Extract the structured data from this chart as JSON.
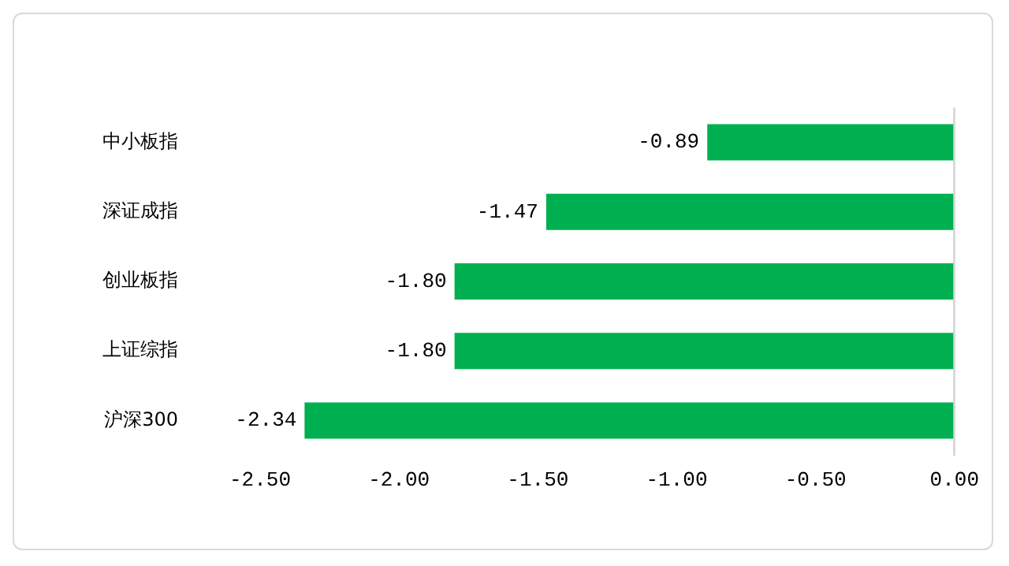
{
  "chart_data": {
    "type": "bar",
    "orientation": "horizontal",
    "categories": [
      "中小板指",
      "深证成指",
      "创业板指",
      "上证综指",
      "沪深300"
    ],
    "values": [
      -0.89,
      -1.47,
      -1.8,
      -1.8,
      -2.34
    ],
    "color": "#00b050",
    "value_labels": [
      "-0.89",
      "-1.47",
      "-1.80",
      "-1.80",
      "-2.34"
    ],
    "xlim": [
      -2.5,
      0
    ],
    "xticks": [
      {
        "value": -2.5,
        "label": "-2.50"
      },
      {
        "value": -2,
        "label": "-2.00"
      },
      {
        "value": -1.5,
        "label": "-1.50"
      },
      {
        "value": -1,
        "label": "-1.00"
      },
      {
        "value": -0.5,
        "label": "-0.50"
      },
      {
        "value": 0,
        "label": "0.00"
      }
    ],
    "grid": false,
    "legend": false
  }
}
